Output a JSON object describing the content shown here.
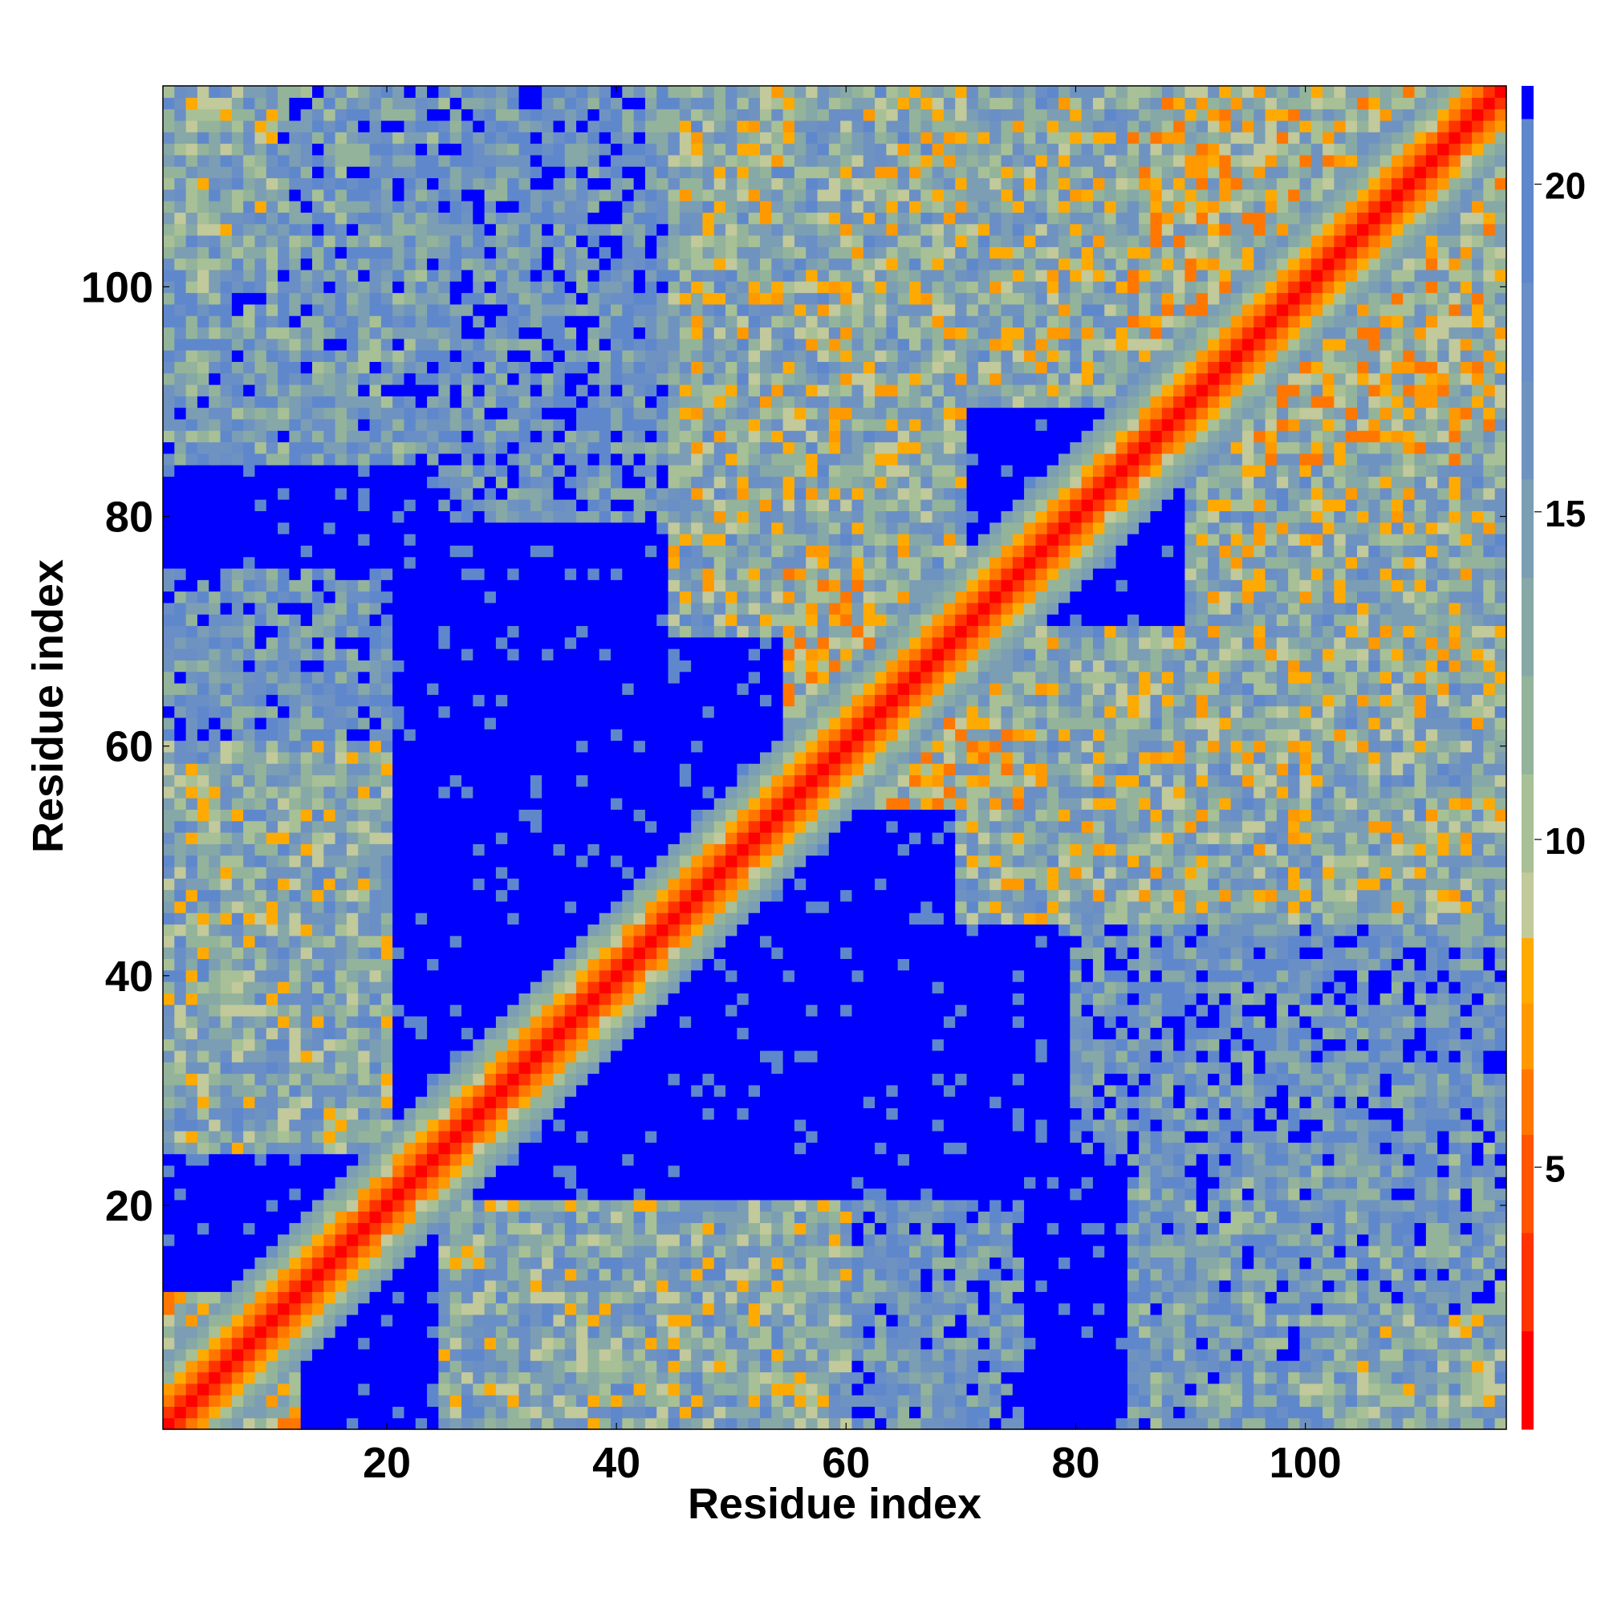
{
  "chart_data": {
    "type": "heatmap",
    "title": "",
    "xlabel": "Residue index",
    "ylabel": "Residue index",
    "n_residues": 117,
    "xlim": [
      0.5,
      117.5
    ],
    "ylim": [
      0.5,
      117.5
    ],
    "x_ticks": [
      20,
      40,
      60,
      80,
      100
    ],
    "y_ticks": [
      20,
      40,
      60,
      80,
      100
    ],
    "x_tick_labels": [
      "20",
      "40",
      "60",
      "80",
      "100"
    ],
    "y_tick_labels": [
      "20",
      "40",
      "60",
      "80",
      "100"
    ],
    "colorbar": {
      "range": [
        1,
        21.5
      ],
      "ticks": [
        5,
        10,
        15,
        20
      ],
      "tick_labels": [
        "5",
        "10",
        "15",
        "20"
      ],
      "levels": [
        {
          "max": 2.5,
          "color": "#ff0000"
        },
        {
          "max": 4.0,
          "color": "#ff3300"
        },
        {
          "max": 5.5,
          "color": "#ff5500"
        },
        {
          "max": 6.5,
          "color": "#ff7700"
        },
        {
          "max": 7.5,
          "color": "#ff9900"
        },
        {
          "max": 8.5,
          "color": "#ffaa00"
        },
        {
          "max": 9.5,
          "color": "#c2c99a"
        },
        {
          "max": 11.0,
          "color": "#a8c096"
        },
        {
          "max": 12.5,
          "color": "#93b49a"
        },
        {
          "max": 14.0,
          "color": "#86a8a6"
        },
        {
          "max": 15.5,
          "color": "#7b9eb4"
        },
        {
          "max": 17.0,
          "color": "#6f93c0"
        },
        {
          "max": 18.5,
          "color": "#6a8ec6"
        },
        {
          "max": 21.0,
          "color": "#5f88cc"
        },
        {
          "max": 99,
          "color": "#0000ff"
        }
      ]
    },
    "description": "Symmetric residue-residue distance map; contacts along the main diagonal (red, distance < 5), off-diagonal contact regions around residues 1-20 vs 25-60, 45-70 vs 70-117, and 85-117 vs 85-117; distant pairs (>21) in blue.",
    "blocks": [
      {
        "i": [
          1,
          20
        ],
        "j": [
          25,
          60
        ],
        "mean": 13.5
      },
      {
        "i": [
          1,
          12
        ],
        "j": [
          1,
          12
        ],
        "mean": 10
      },
      {
        "i": [
          1,
          20
        ],
        "j": [
          60,
          75
        ],
        "mean": 17
      },
      {
        "i": [
          1,
          25
        ],
        "j": [
          85,
          117
        ],
        "mean": 16
      },
      {
        "i": [
          25,
          45
        ],
        "j": [
          80,
          117
        ],
        "mean": 17.5
      },
      {
        "i": [
          45,
          70
        ],
        "j": [
          70,
          117
        ],
        "mean": 13
      },
      {
        "i": [
          55,
          75
        ],
        "j": [
          55,
          75
        ],
        "mean": 11
      },
      {
        "i": [
          70,
          90
        ],
        "j": [
          90,
          117
        ],
        "mean": 13
      },
      {
        "i": [
          85,
          117
        ],
        "j": [
          85,
          117
        ],
        "mean": 11
      },
      {
        "i": [
          30,
          50
        ],
        "j": [
          90,
          117
        ],
        "mean": 20
      },
      {
        "i": [
          1,
          10
        ],
        "j": [
          100,
          117
        ],
        "mean": 14
      }
    ]
  }
}
